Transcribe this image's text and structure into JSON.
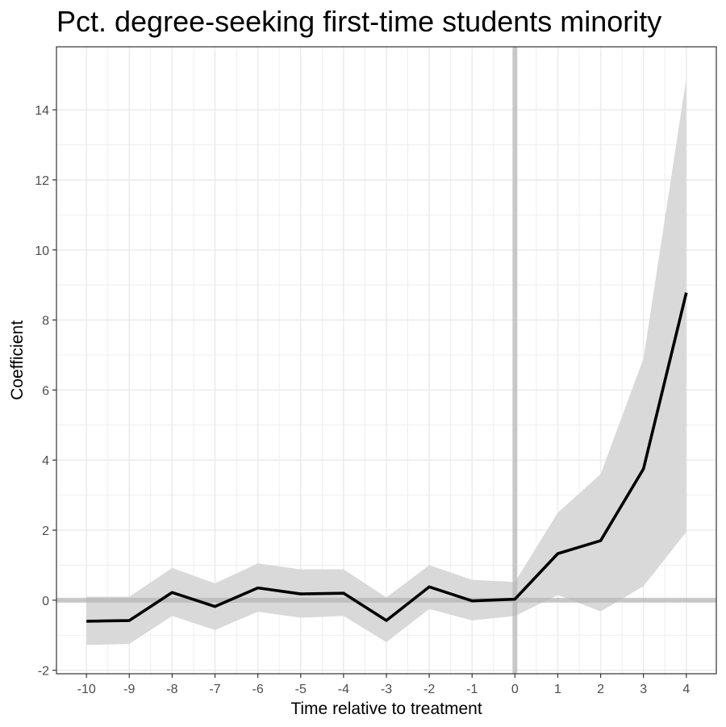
{
  "chart_data": {
    "type": "line",
    "title": "Pct. degree-seeking first-time students minority",
    "xlabel": "Time relative to treatment",
    "ylabel": "Coefficient",
    "x": [
      -10,
      -9,
      -8,
      -7,
      -6,
      -5,
      -4,
      -3,
      -2,
      -1,
      0,
      1,
      2,
      3,
      4
    ],
    "series": [
      {
        "values": [
          -0.6,
          -0.58,
          0.22,
          -0.18,
          0.35,
          0.18,
          0.2,
          -0.58,
          0.38,
          -0.02,
          0.03,
          1.33,
          1.7,
          3.75,
          8.78
        ],
        "ci_lower": [
          -1.28,
          -1.25,
          -0.45,
          -0.85,
          -0.33,
          -0.5,
          -0.45,
          -1.2,
          -0.25,
          -0.58,
          -0.45,
          0.15,
          -0.32,
          0.4,
          1.95
        ],
        "ci_upper": [
          0.1,
          0.1,
          0.92,
          0.48,
          1.05,
          0.88,
          0.88,
          0.08,
          1.0,
          0.58,
          0.52,
          2.5,
          3.6,
          6.9,
          14.9
        ]
      }
    ],
    "xlim": [
      -10.7,
      4.7
    ],
    "ylim": [
      -2.1,
      15.8
    ],
    "x_ticks": [
      -10,
      -9,
      -8,
      -7,
      -6,
      -5,
      -4,
      -3,
      -2,
      -1,
      0,
      1,
      2,
      3,
      4
    ],
    "y_ticks": [
      -2,
      0,
      2,
      4,
      6,
      8,
      10,
      12,
      14
    ],
    "reference_lines": {
      "vertical_x": 0,
      "horizontal_y": 0
    },
    "grid": true,
    "legend": "none",
    "colors": {
      "line": "#000000",
      "ribbon": "#d9d9d9",
      "reference_line": "#c8c8c8",
      "grid": "#ebebeb",
      "panel_border": "#333333"
    }
  }
}
